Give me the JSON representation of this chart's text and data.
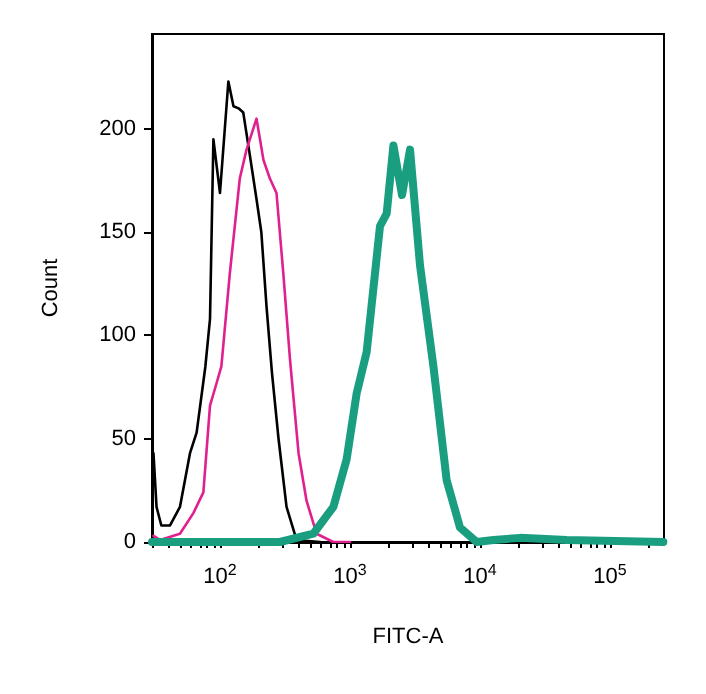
{
  "chart_data": {
    "type": "line",
    "xlabel": "FITC-A",
    "ylabel": "Count",
    "log": "x",
    "grid": false,
    "marker": "none",
    "line_style": "solid",
    "xlim": [
      30,
      260000
    ],
    "ylim": [
      0,
      246
    ],
    "xticks": [
      {
        "value": 30,
        "label": null
      },
      {
        "value": 40,
        "label": null
      },
      {
        "value": 50,
        "label": null
      },
      {
        "value": 60,
        "label": null
      },
      {
        "value": 70,
        "label": null
      },
      {
        "value": 80,
        "label": null
      },
      {
        "value": 90,
        "label": null
      },
      {
        "value": 100,
        "label": "10$^{2}$"
      },
      {
        "value": 200,
        "label": null
      },
      {
        "value": 300,
        "label": null
      },
      {
        "value": 400,
        "label": null
      },
      {
        "value": 500,
        "label": null
      },
      {
        "value": 600,
        "label": null
      },
      {
        "value": 700,
        "label": null
      },
      {
        "value": 800,
        "label": null
      },
      {
        "value": 900,
        "label": null
      },
      {
        "value": 1000,
        "label": "10$^{3}$"
      },
      {
        "value": 2000,
        "label": null
      },
      {
        "value": 3000,
        "label": null
      },
      {
        "value": 4000,
        "label": null
      },
      {
        "value": 5000,
        "label": null
      },
      {
        "value": 6000,
        "label": null
      },
      {
        "value": 7000,
        "label": null
      },
      {
        "value": 8000,
        "label": null
      },
      {
        "value": 9000,
        "label": null
      },
      {
        "value": 10000,
        "label": "10$^{4}$"
      },
      {
        "value": 20000,
        "label": null
      },
      {
        "value": 30000,
        "label": null
      },
      {
        "value": 40000,
        "label": null
      },
      {
        "value": 50000,
        "label": null
      },
      {
        "value": 60000,
        "label": null
      },
      {
        "value": 70000,
        "label": null
      },
      {
        "value": 80000,
        "label": null
      },
      {
        "value": 90000,
        "label": null
      },
      {
        "value": 100000,
        "label": "10$^{5}$"
      },
      {
        "value": 200000,
        "label": null
      }
    ],
    "yticks": [
      0,
      50,
      100,
      150,
      200
    ],
    "series": [
      {
        "color": "#000000",
        "x": [
          30.8,
          32.5,
          35.4,
          41.3,
          49.2,
          58.8,
          66.1,
          77.2,
          83.8,
          89,
          100,
          116,
          127,
          139,
          151,
          170,
          191,
          208,
          228,
          251,
          282,
          325,
          388,
          588
        ],
        "values": [
          43,
          17,
          8,
          8,
          17,
          43,
          53,
          85,
          108,
          195,
          169,
          223,
          211,
          210,
          208,
          187,
          166,
          150,
          114,
          82,
          50,
          17,
          1,
          0
        ]
      },
      {
        "color": "#e0208f",
        "x": [
          30.8,
          34.6,
          49.2,
          62.4,
          74.5,
          83.8,
          94.2,
          102.5,
          119,
          142,
          160,
          191,
          216,
          242,
          272,
          307,
          346,
          402,
          463,
          553,
          744,
          1000
        ],
        "values": [
          3,
          1,
          4,
          14,
          24,
          66,
          77,
          85,
          130,
          176,
          190,
          205,
          185,
          176,
          169,
          130,
          88,
          43,
          20,
          4,
          0,
          0
        ]
      },
      {
        "color": "#1a9e80",
        "x": [
          30,
          289,
          522,
          745,
          942,
          1125,
          1343,
          1701,
          1914,
          2157,
          2512,
          2895,
          3455,
          4383,
          5534,
          7017,
          9415,
          12700,
          20300,
          46400,
          257000
        ],
        "values": [
          0,
          0,
          4,
          17,
          40,
          72,
          92,
          153,
          159,
          192,
          168,
          190,
          134,
          85,
          30,
          7,
          0,
          1,
          2,
          1,
          0
        ]
      }
    ]
  }
}
